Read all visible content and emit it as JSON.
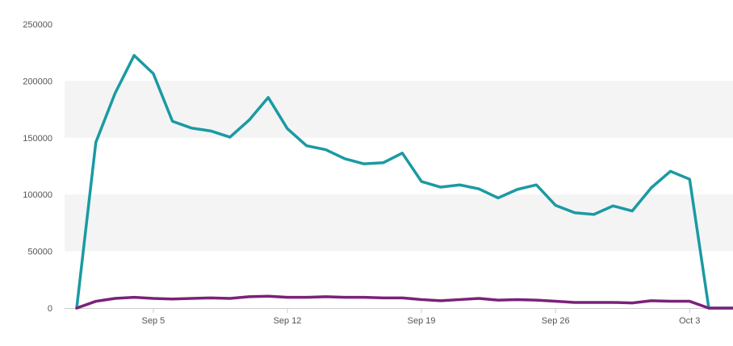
{
  "chart_data": {
    "type": "line",
    "title": "",
    "xlabel": "",
    "ylabel": "",
    "ylim": [
      0,
      250000
    ],
    "y_ticks": [
      0,
      50000,
      100000,
      150000,
      200000,
      250000
    ],
    "y_tick_labels": [
      "0",
      "50000",
      "100000",
      "150000",
      "200000",
      "250000"
    ],
    "x": [
      "Sep 1",
      "Sep 2",
      "Sep 3",
      "Sep 4",
      "Sep 5",
      "Sep 6",
      "Sep 7",
      "Sep 8",
      "Sep 9",
      "Sep 10",
      "Sep 11",
      "Sep 12",
      "Sep 13",
      "Sep 14",
      "Sep 15",
      "Sep 16",
      "Sep 17",
      "Sep 18",
      "Sep 19",
      "Sep 20",
      "Sep 21",
      "Sep 22",
      "Sep 23",
      "Sep 24",
      "Sep 25",
      "Sep 26",
      "Sep 27",
      "Sep 28",
      "Sep 29",
      "Sep 30",
      "Oct 1",
      "Oct 2",
      "Oct 3",
      "Oct 4",
      "Oct 5"
    ],
    "x_tick_labels": [
      {
        "label": "Sep 5",
        "index": 4
      },
      {
        "label": "Sep 12",
        "index": 11
      },
      {
        "label": "Sep 19",
        "index": 18
      },
      {
        "label": "Sep 26",
        "index": 25
      },
      {
        "label": "Oct 3",
        "index": 32
      }
    ],
    "series": [
      {
        "color": "#1a9aa3",
        "values": [
          0,
          146000,
          189000,
          222500,
          206500,
          164500,
          158500,
          156000,
          150500,
          165500,
          185500,
          158000,
          143000,
          139500,
          131500,
          127000,
          128000,
          136500,
          111500,
          106500,
          108500,
          105000,
          97000,
          104500,
          108500,
          90500,
          84000,
          82500,
          90000,
          85500,
          106000,
          120500,
          113500,
          0,
          0
        ]
      },
      {
        "color": "#7b2179",
        "values": [
          0,
          6000,
          8500,
          9500,
          8500,
          8000,
          8500,
          9000,
          8500,
          10000,
          10500,
          9500,
          9500,
          10000,
          9500,
          9500,
          9000,
          9000,
          7500,
          6500,
          7500,
          8500,
          7000,
          7500,
          7000,
          6000,
          5000,
          5000,
          5000,
          4500,
          6500,
          6000,
          6000,
          0,
          0
        ]
      }
    ],
    "grid": true,
    "legend": "none",
    "band_color": "#f4f4f4",
    "axis_color": "#cccccc"
  }
}
